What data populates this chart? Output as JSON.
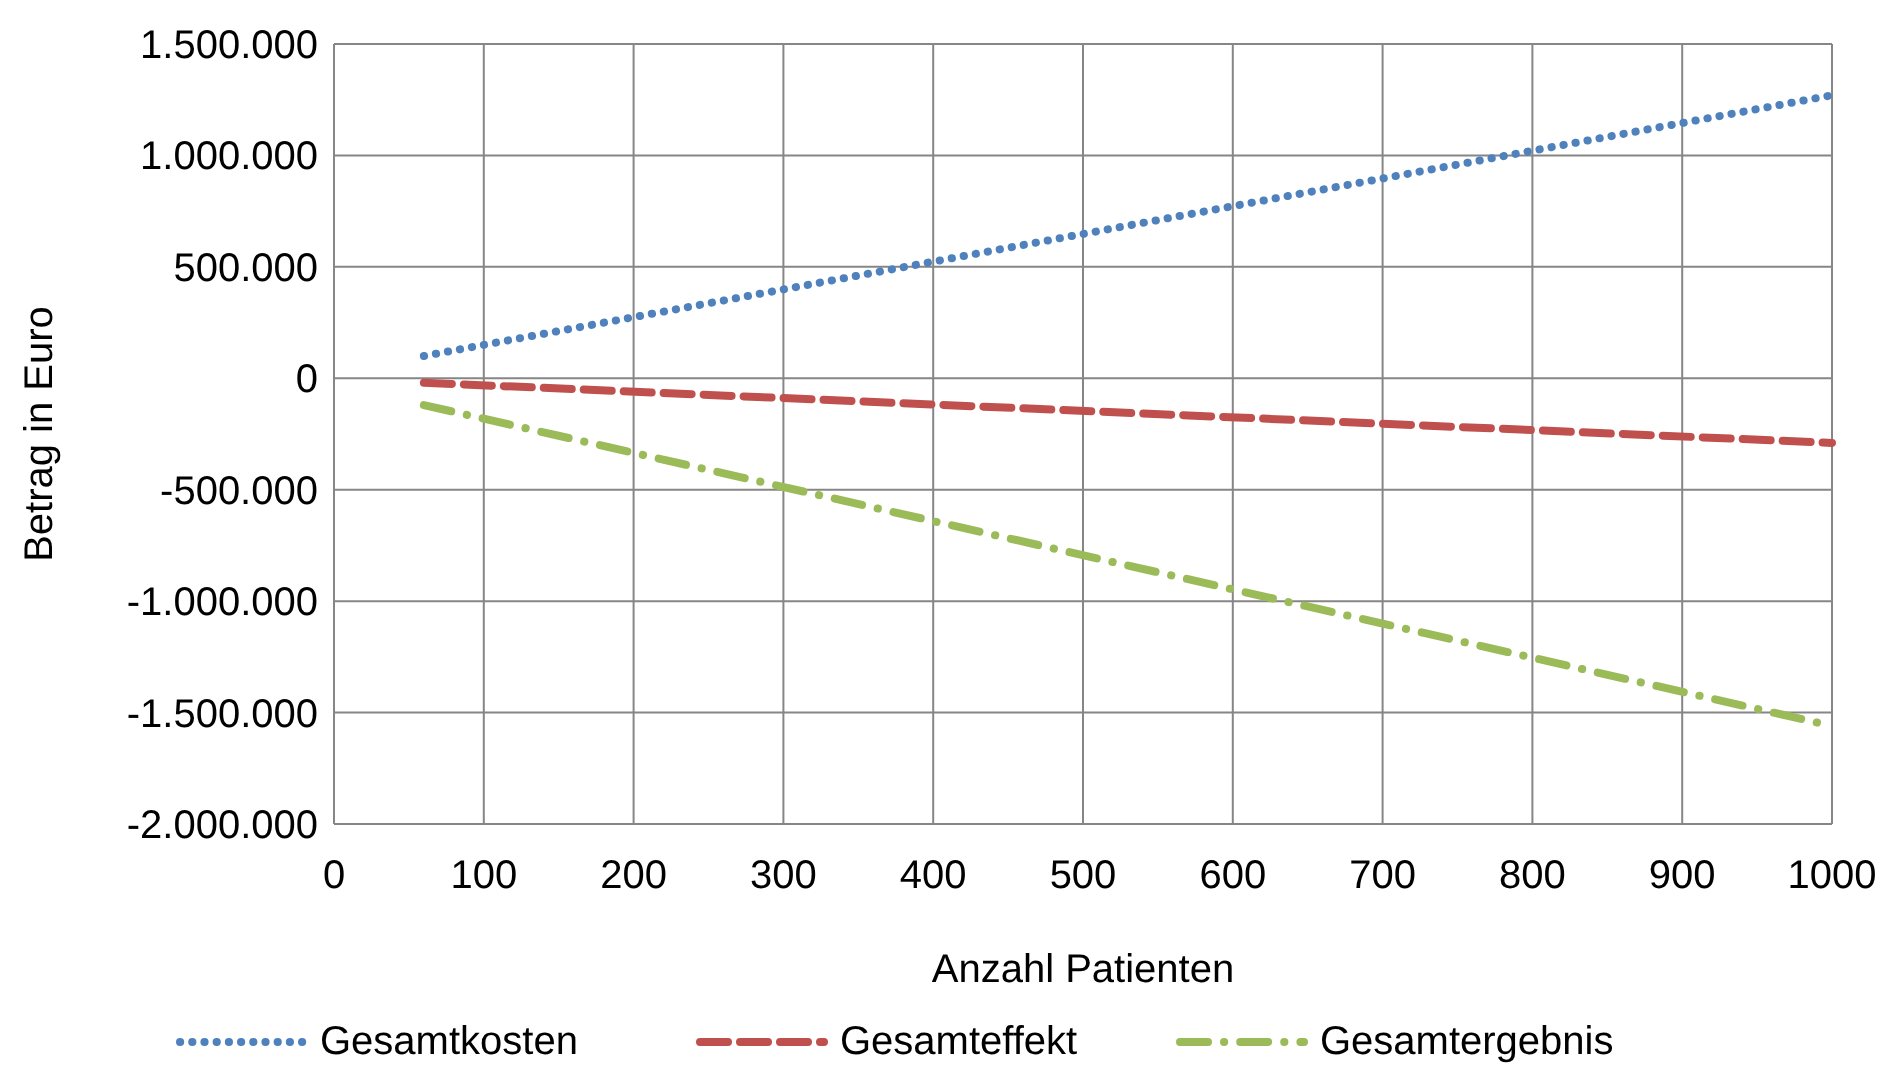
{
  "chart_data": {
    "type": "line",
    "xlabel": "Anzahl Patienten",
    "ylabel": "Betrag in Euro",
    "x": [
      60,
      1000
    ],
    "series": [
      {
        "name": "Gesamtkosten",
        "color": "#4f81bd",
        "line_style": "dotted",
        "values": [
          100000,
          1270000
        ]
      },
      {
        "name": "Gesamteffekt",
        "color": "#c0504d",
        "line_style": "dashed",
        "values": [
          -20000,
          -290000
        ]
      },
      {
        "name": "Gesamtergebnis",
        "color": "#9bbb59",
        "line_style": "dashdot",
        "values": [
          -120000,
          -1560000
        ]
      }
    ],
    "xlim": [
      0,
      1000
    ],
    "xticks": [
      0,
      100,
      200,
      300,
      400,
      500,
      600,
      700,
      800,
      900,
      1000
    ],
    "ylim": [
      -2000000,
      1500000
    ],
    "yticks": [
      {
        "value": -2000000,
        "label": "-2.000.000"
      },
      {
        "value": -1500000,
        "label": "-1.500.000"
      },
      {
        "value": -1000000,
        "label": "-1.000.000"
      },
      {
        "value": -500000,
        "label": "-500.000"
      },
      0,
      {
        "value": 500000,
        "label": "500.000"
      },
      {
        "value": 1000000,
        "label": "1.000.000"
      },
      {
        "value": 1500000,
        "label": "1.500.000"
      }
    ],
    "grid": true,
    "legend": "bottom"
  }
}
